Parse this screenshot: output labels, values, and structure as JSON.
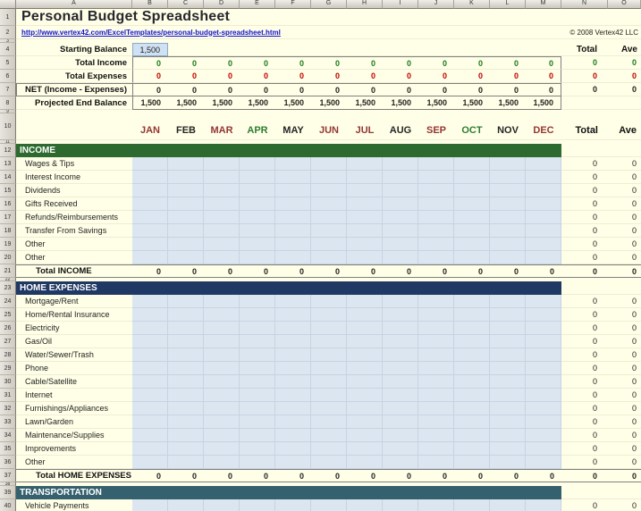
{
  "app": {
    "title": "Personal Budget Spreadsheet",
    "url": "http://www.vertex42.com/ExcelTemplates/personal-budget-spreadsheet.html",
    "copyright": "© 2008 Vertex42 LLC"
  },
  "grid": {
    "column_letters": [
      "A",
      "B",
      "C",
      "D",
      "E",
      "F",
      "G",
      "H",
      "I",
      "J",
      "K",
      "L",
      "M",
      "N",
      "O"
    ],
    "row_numbers": [
      "1",
      "2",
      "3",
      "4",
      "5",
      "6",
      "7",
      "8",
      "9",
      "10",
      "11",
      "12",
      "13",
      "14",
      "15",
      "16",
      "17",
      "18",
      "19",
      "20",
      "21",
      "22",
      "23",
      "24",
      "25",
      "26",
      "27",
      "28",
      "29",
      "30",
      "31",
      "32",
      "33",
      "34",
      "35",
      "36",
      "37",
      "38",
      "39",
      "40"
    ]
  },
  "summary": {
    "total_header": "Total",
    "ave_header": "Ave",
    "rows": [
      {
        "label": "Starting Balance",
        "value": "1,500"
      },
      {
        "label": "Total Income",
        "cell": "0",
        "total": "0",
        "ave": "0",
        "color": "#1B7A1B"
      },
      {
        "label": "Total Expenses",
        "cell": "0",
        "total": "0",
        "ave": "0",
        "color": "#C00000"
      },
      {
        "label": "NET (Income - Expenses)",
        "cell": "0",
        "total": "0",
        "ave": "0",
        "color": "#1F1F1F"
      },
      {
        "label": "Projected End Balance",
        "cell": "1,500",
        "total": "",
        "ave": "",
        "color": "#1F1F1F"
      }
    ]
  },
  "month_header": {
    "months": [
      "JAN",
      "FEB",
      "MAR",
      "APR",
      "MAY",
      "JUN",
      "JUL",
      "AUG",
      "SEP",
      "OCT",
      "NOV",
      "DEC"
    ],
    "colors": [
      "#943634",
      "#262626",
      "#943634",
      "#2E7D32",
      "#262626",
      "#943634",
      "#943634",
      "#262626",
      "#943634",
      "#2E7D32",
      "#262626",
      "#943634"
    ],
    "total": "Total",
    "ave": "Ave"
  },
  "sections": [
    {
      "name": "INCOME",
      "color": "#2D6A2F",
      "items": [
        "Wages & Tips",
        "Interest Income",
        "Dividends",
        "Gifts Received",
        "Refunds/Reimbursements",
        "Transfer From Savings",
        "Other",
        "Other"
      ],
      "total_label": "Total INCOME",
      "total_value": "0"
    },
    {
      "name": "HOME EXPENSES",
      "color": "#1F3864",
      "items": [
        "Mortgage/Rent",
        "Home/Rental Insurance",
        "Electricity",
        "Gas/Oil",
        "Water/Sewer/Trash",
        "Phone",
        "Cable/Satellite",
        "Internet",
        "Furnishings/Appliances",
        "Lawn/Garden",
        "Maintenance/Supplies",
        "Improvements",
        "Other"
      ],
      "total_label": "Total HOME EXPENSES",
      "total_value": "0"
    },
    {
      "name": "TRANSPORTATION",
      "color": "#35616E",
      "items": [
        "Vehicle Payments"
      ]
    }
  ],
  "values": {
    "zero": "0"
  }
}
